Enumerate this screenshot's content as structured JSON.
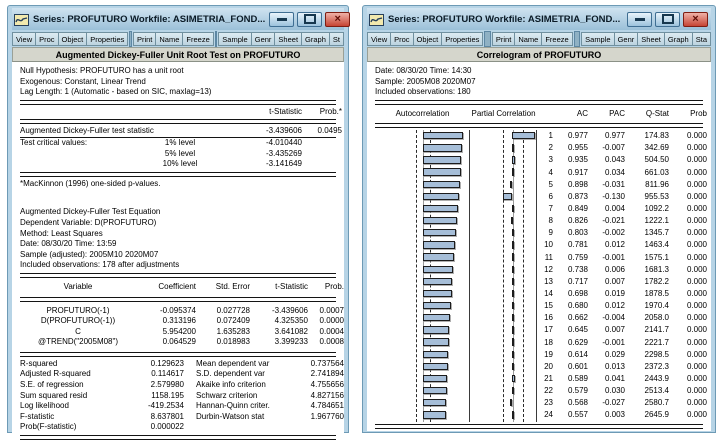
{
  "colors": {
    "frame": "#b7d4e6",
    "titlebar_light": "#cfe3f0",
    "titlebar_dark": "#9bc0d8",
    "header_strip": "#d5d6cc",
    "bar_fill": "#a6bed8",
    "close_red": "#c64434"
  },
  "window_controls": {
    "minimize": "minimize",
    "maximize": "maximize",
    "close": "close"
  },
  "left_window": {
    "title": "Series: PROFUTURO   Workfile: ASIMETRIA_FOND...",
    "toolbar": [
      "View",
      "Proc",
      "Object",
      "Properties",
      "Print",
      "Name",
      "Freeze",
      "Sample",
      "Genr",
      "Sheet",
      "Graph",
      "St"
    ],
    "header": "Augmented Dickey-Fuller Unit Root Test on PROFUTURO",
    "hypothesis_lines": [
      "Null Hypothesis: PROFUTURO has a unit root",
      "Exogenous: Constant, Linear Trend",
      "Lag Length: 1 (Automatic - based on SIC, maxlag=13)"
    ],
    "adf": {
      "col_t": "t-Statistic",
      "col_p": "Prob.*",
      "stat_label": "Augmented Dickey-Fuller test statistic",
      "stat_t": "-3.439606",
      "stat_p": "0.0495",
      "critical_label": "Test critical values:",
      "critical": [
        {
          "level": "1% level",
          "value": "-4.010440"
        },
        {
          "level": "5% level",
          "value": "-3.435269"
        },
        {
          "level": "10% level",
          "value": "-3.141649"
        }
      ]
    },
    "footnote": "*MacKinnon (1996) one-sided p-values.",
    "equation_lines": [
      "Augmented Dickey-Fuller Test Equation",
      "Dependent Variable: D(PROFUTURO)",
      "Method: Least Squares",
      "Date: 08/30/20   Time: 13:59",
      "Sample (adjusted): 2005M10 2020M07",
      "Included observations: 178 after adjustments"
    ],
    "coef_table": {
      "headers": [
        "Variable",
        "Coefficient",
        "Std. Error",
        "t-Statistic",
        "Prob."
      ],
      "rows": [
        [
          "PROFUTURO(-1)",
          "-0.095374",
          "0.027728",
          "-3.439606",
          "0.0007"
        ],
        [
          "D(PROFUTURO(-1))",
          "0.313196",
          "0.072409",
          "4.325350",
          "0.0000"
        ],
        [
          "C",
          "5.954200",
          "1.635283",
          "3.641082",
          "0.0004"
        ],
        [
          "@TREND(\"2005M08\")",
          "0.064529",
          "0.018983",
          "3.399233",
          "0.0008"
        ]
      ]
    },
    "summary_stats": [
      [
        "R-squared",
        "0.129623",
        "Mean dependent var",
        "0.737564"
      ],
      [
        "Adjusted R-squared",
        "0.114617",
        "S.D. dependent var",
        "2.741894"
      ],
      [
        "S.E. of regression",
        "2.579980",
        "Akaike info criterion",
        "4.755656"
      ],
      [
        "Sum squared resid",
        "1158.195",
        "Schwarz criterion",
        "4.827156"
      ],
      [
        "Log likelihood",
        "-419.2534",
        "Hannan-Quinn criter.",
        "4.784651"
      ],
      [
        "F-statistic",
        "8.637801",
        "Durbin-Watson stat",
        "1.967760"
      ],
      [
        "Prob(F-statistic)",
        "0.000022",
        "",
        ""
      ]
    ]
  },
  "right_window": {
    "title": "Series: PROFUTURO   Workfile: ASIMETRIA_FOND...",
    "toolbar": [
      "View",
      "Proc",
      "Object",
      "Properties",
      "Print",
      "Name",
      "Freeze",
      "Sample",
      "Genr",
      "Sheet",
      "Graph",
      "Sta"
    ],
    "header": "Correlogram of PROFUTURO",
    "info_lines": [
      "Date: 08/30/20   Time: 14:30",
      "Sample: 2005M08 2020M07",
      "Included observations: 180"
    ],
    "table_headers": {
      "ac_plot": "Autocorrelation",
      "pac_plot": "Partial Correlation",
      "ac": "AC",
      "pac": "PAC",
      "qstat": "Q-Stat",
      "prob": "Prob"
    },
    "rows": [
      {
        "lag": 1,
        "ac": 0.977,
        "pac": 0.977,
        "qstat": "174.83",
        "prob": "0.000"
      },
      {
        "lag": 2,
        "ac": 0.955,
        "pac": -0.007,
        "qstat": "342.69",
        "prob": "0.000"
      },
      {
        "lag": 3,
        "ac": 0.935,
        "pac": 0.043,
        "qstat": "504.50",
        "prob": "0.000"
      },
      {
        "lag": 4,
        "ac": 0.917,
        "pac": 0.034,
        "qstat": "661.03",
        "prob": "0.000"
      },
      {
        "lag": 5,
        "ac": 0.898,
        "pac": -0.031,
        "qstat": "811.96",
        "prob": "0.000"
      },
      {
        "lag": 6,
        "ac": 0.873,
        "pac": -0.13,
        "qstat": "955.53",
        "prob": "0.000"
      },
      {
        "lag": 7,
        "ac": 0.849,
        "pac": 0.004,
        "qstat": "1092.2",
        "prob": "0.000"
      },
      {
        "lag": 8,
        "ac": 0.826,
        "pac": -0.021,
        "qstat": "1222.1",
        "prob": "0.000"
      },
      {
        "lag": 9,
        "ac": 0.803,
        "pac": -0.002,
        "qstat": "1345.7",
        "prob": "0.000"
      },
      {
        "lag": 10,
        "ac": 0.781,
        "pac": 0.012,
        "qstat": "1463.4",
        "prob": "0.000"
      },
      {
        "lag": 11,
        "ac": 0.759,
        "pac": -0.001,
        "qstat": "1575.1",
        "prob": "0.000"
      },
      {
        "lag": 12,
        "ac": 0.738,
        "pac": 0.006,
        "qstat": "1681.3",
        "prob": "0.000"
      },
      {
        "lag": 13,
        "ac": 0.717,
        "pac": 0.007,
        "qstat": "1782.2",
        "prob": "0.000"
      },
      {
        "lag": 14,
        "ac": 0.698,
        "pac": 0.019,
        "qstat": "1878.5",
        "prob": "0.000"
      },
      {
        "lag": 15,
        "ac": 0.68,
        "pac": 0.012,
        "qstat": "1970.4",
        "prob": "0.000"
      },
      {
        "lag": 16,
        "ac": 0.662,
        "pac": -0.004,
        "qstat": "2058.0",
        "prob": "0.000"
      },
      {
        "lag": 17,
        "ac": 0.645,
        "pac": 0.007,
        "qstat": "2141.7",
        "prob": "0.000"
      },
      {
        "lag": 18,
        "ac": 0.629,
        "pac": -0.001,
        "qstat": "2221.7",
        "prob": "0.000"
      },
      {
        "lag": 19,
        "ac": 0.614,
        "pac": 0.029,
        "qstat": "2298.5",
        "prob": "0.000"
      },
      {
        "lag": 20,
        "ac": 0.601,
        "pac": 0.013,
        "qstat": "2372.3",
        "prob": "0.000"
      },
      {
        "lag": 21,
        "ac": 0.589,
        "pac": 0.041,
        "qstat": "2443.9",
        "prob": "0.000"
      },
      {
        "lag": 22,
        "ac": 0.579,
        "pac": 0.03,
        "qstat": "2513.4",
        "prob": "0.000"
      },
      {
        "lag": 23,
        "ac": 0.568,
        "pac": -0.027,
        "qstat": "2580.7",
        "prob": "0.000"
      },
      {
        "lag": 24,
        "ac": 0.557,
        "pac": 0.003,
        "qstat": "2645.9",
        "prob": "0.000"
      }
    ]
  }
}
